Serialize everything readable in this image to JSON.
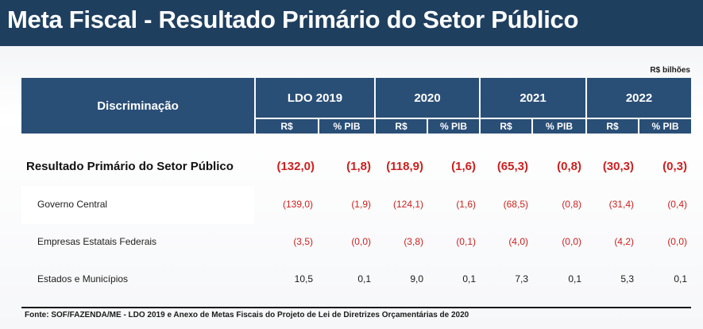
{
  "title": "Meta Fiscal - Resultado Primário do Setor Público",
  "unit_note": "R$ bilhões",
  "table": {
    "header_label": "Discriminação",
    "groups": [
      "LDO 2019",
      "2020",
      "2021",
      "2022"
    ],
    "subheaders": [
      "R$",
      "% PIB",
      "R$",
      "% PIB",
      "R$",
      "% PIB",
      "R$",
      "% PIB"
    ],
    "rows": [
      {
        "label": "Resultado Primário do Setor Público",
        "values": [
          "(132,0)",
          "(1,8)",
          "(118,9)",
          "(1,6)",
          "(65,3)",
          "(0,8)",
          "(30,3)",
          "(0,3)"
        ]
      },
      {
        "label": "Governo Central",
        "values": [
          "(139,0)",
          "(1,9)",
          "(124,1)",
          "(1,6)",
          "(68,5)",
          "(0,8)",
          "(31,4)",
          "(0,4)"
        ]
      },
      {
        "label": "Empresas Estatais Federais",
        "values": [
          "(3,5)",
          "(0,0)",
          "(3,8)",
          "(0,1)",
          "(4,0)",
          "(0,0)",
          "(4,2)",
          "(0,0)"
        ]
      },
      {
        "label": "Estados e Municípios",
        "values": [
          "10,5",
          "0,1",
          "9,0",
          "0,1",
          "7,3",
          "0,1",
          "5,3",
          "0,1"
        ]
      }
    ]
  },
  "source": "Fonte: SOF/FAZENDA/ME - LDO 2019 e Anexo de Metas Fiscais do Projeto de Lei de Diretrizes Orçamentárias de 2020",
  "colors": {
    "title_bar": "#1f3f5f",
    "table_header": "#2a4f77",
    "negative": "#cc1f1f",
    "positive": "#1a1a1a"
  }
}
